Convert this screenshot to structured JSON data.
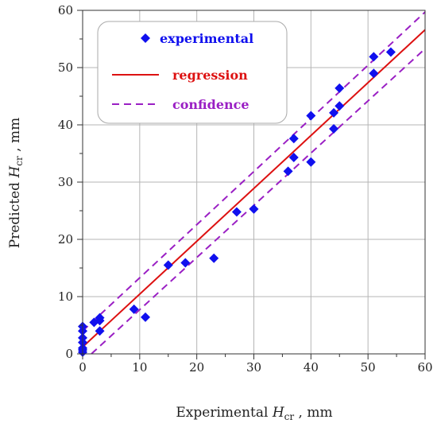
{
  "chart_data": {
    "type": "scatter",
    "xlabel": {
      "prefix": "Experimental ",
      "var": "H",
      "sub": "cr",
      "suffix": " , mm"
    },
    "ylabel": {
      "prefix": "Predicted ",
      "var": "H",
      "sub": "cr",
      "suffix": " , mm"
    },
    "xlim": [
      0,
      60
    ],
    "ylim": [
      0,
      60
    ],
    "xticks": [
      "0",
      "10",
      "20",
      "30",
      "40",
      "50",
      "60"
    ],
    "yticks": [
      "0",
      "10",
      "20",
      "30",
      "40",
      "50",
      "60"
    ],
    "grid": true,
    "legend_position": "top-left",
    "series": [
      {
        "name": "experimental",
        "kind": "points",
        "marker": "diamond",
        "color": "#1010ee",
        "points": [
          [
            0,
            0.3
          ],
          [
            0,
            0.7
          ],
          [
            0,
            1.0
          ],
          [
            0,
            2.0
          ],
          [
            0,
            2.8
          ],
          [
            0,
            4.0
          ],
          [
            0,
            4.8
          ],
          [
            2.0,
            5.5
          ],
          [
            3.0,
            4.0
          ],
          [
            3.0,
            5.8
          ],
          [
            3.0,
            6.3
          ],
          [
            9.0,
            7.8
          ],
          [
            11.0,
            6.4
          ],
          [
            15.0,
            15.5
          ],
          [
            18.0,
            15.9
          ],
          [
            23.0,
            16.7
          ],
          [
            27.0,
            24.8
          ],
          [
            30.0,
            25.3
          ],
          [
            36.0,
            31.9
          ],
          [
            37.0,
            34.3
          ],
          [
            37.0,
            37.6
          ],
          [
            40.0,
            33.5
          ],
          [
            40.0,
            41.6
          ],
          [
            44.0,
            39.3
          ],
          [
            44.0,
            42.1
          ],
          [
            45.0,
            43.3
          ],
          [
            45.0,
            46.4
          ],
          [
            51.0,
            49.0
          ],
          [
            51.0,
            51.9
          ],
          [
            54.0,
            52.7
          ]
        ]
      },
      {
        "name": "regression",
        "kind": "line",
        "dash": "solid",
        "color": "#dd1111",
        "x": [
          0,
          60
        ],
        "y": [
          1.2,
          56.6
        ]
      },
      {
        "name": "confidence",
        "kind": "line",
        "dash": "dashed",
        "color": "#9a1fc4",
        "x": [
          0,
          60
        ],
        "y": [
          4.0,
          59.7
        ]
      },
      {
        "name": "",
        "kind": "line",
        "dash": "dashed",
        "color": "#9a1fc4",
        "x": [
          0,
          60
        ],
        "y": [
          -1.4,
          53.3
        ]
      }
    ],
    "legend": [
      {
        "label": "experimental",
        "symbol": "diamond",
        "color": "#1010ee"
      },
      {
        "label": "regression",
        "symbol": "solid-line",
        "color": "#dd1111"
      },
      {
        "label": "confidence",
        "symbol": "dashed-line",
        "color": "#9a1fc4"
      }
    ]
  }
}
